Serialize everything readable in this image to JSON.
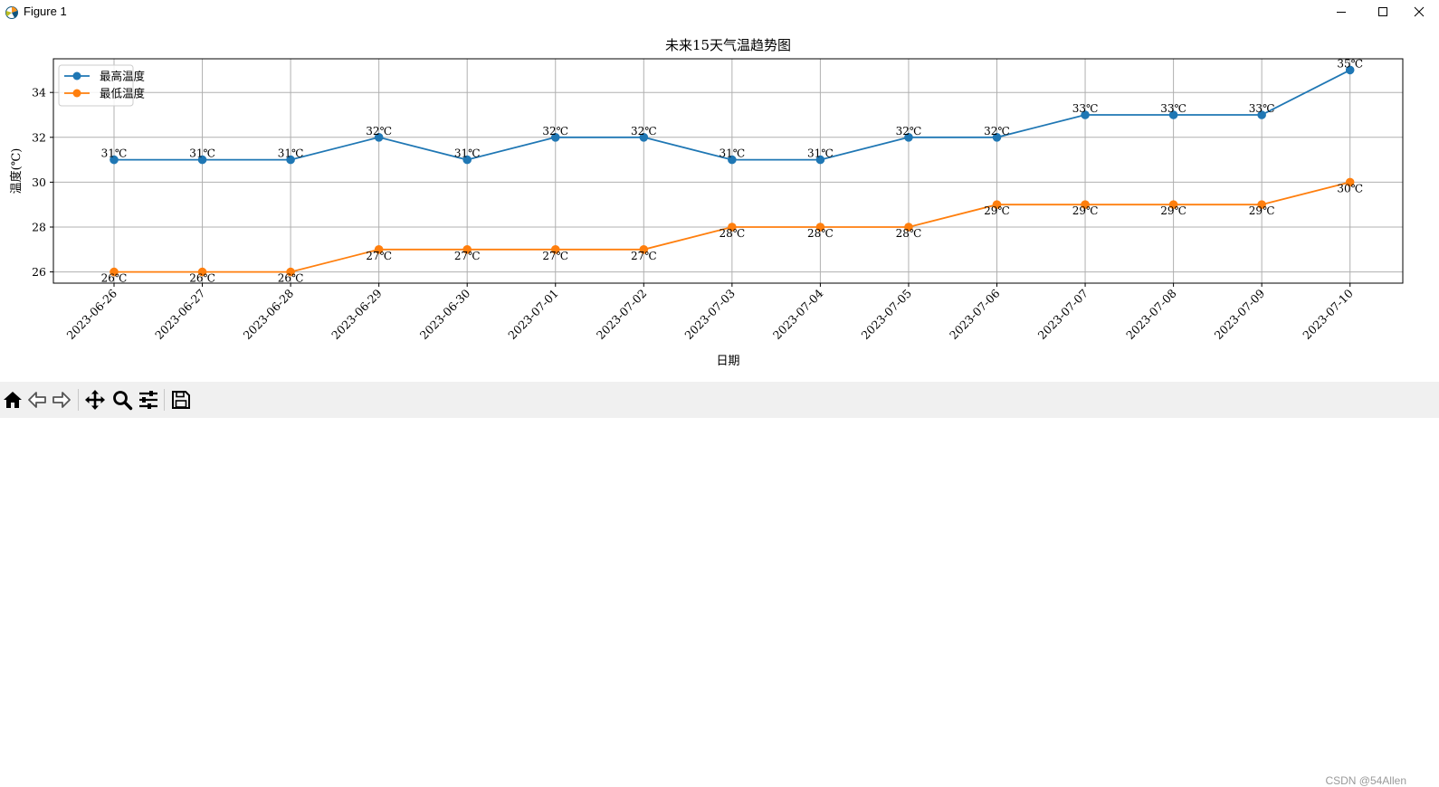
{
  "window": {
    "title": "Figure 1",
    "icons": {
      "app": "matplotlib-icon",
      "minimize": "minimize-icon",
      "maximize": "maximize-icon",
      "close": "close-icon"
    }
  },
  "toolbar": {
    "buttons": [
      {
        "name": "home-button",
        "icon": "home-icon"
      },
      {
        "name": "back-button",
        "icon": "arrow-left-icon"
      },
      {
        "name": "forward-button",
        "icon": "arrow-right-icon"
      },
      {
        "name": "pan-button",
        "icon": "move-icon"
      },
      {
        "name": "zoom-button",
        "icon": "magnifier-icon"
      },
      {
        "name": "configure-subplots-button",
        "icon": "sliders-icon"
      },
      {
        "name": "save-button",
        "icon": "floppy-disk-icon"
      }
    ]
  },
  "watermark": "CSDN @54Allen",
  "colors": {
    "high": "#1f77b4",
    "low": "#ff7f0e",
    "grid": "#b0b0b0"
  },
  "chart_data": {
    "type": "line",
    "title": "未来15天气温趋势图",
    "xlabel": "日期",
    "ylabel": "温度(℃)",
    "ylim": [
      25.5,
      35.5
    ],
    "yticks": [
      26,
      28,
      30,
      32,
      34
    ],
    "grid": true,
    "legend_position": "top-left",
    "categories": [
      "2023-06-26",
      "2023-06-27",
      "2023-06-28",
      "2023-06-29",
      "2023-06-30",
      "2023-07-01",
      "2023-07-02",
      "2023-07-03",
      "2023-07-04",
      "2023-07-05",
      "2023-07-06",
      "2023-07-07",
      "2023-07-08",
      "2023-07-09",
      "2023-07-10"
    ],
    "unit_suffix": "℃",
    "series": [
      {
        "name": "最高温度",
        "values": [
          31,
          31,
          31,
          32,
          31,
          32,
          32,
          31,
          31,
          32,
          32,
          33,
          33,
          33,
          35
        ],
        "color": "#1f77b4",
        "label_position": "above"
      },
      {
        "name": "最低温度",
        "values": [
          26,
          26,
          26,
          27,
          27,
          27,
          27,
          28,
          28,
          28,
          29,
          29,
          29,
          29,
          30
        ],
        "color": "#ff7f0e",
        "label_position": "below"
      }
    ]
  }
}
